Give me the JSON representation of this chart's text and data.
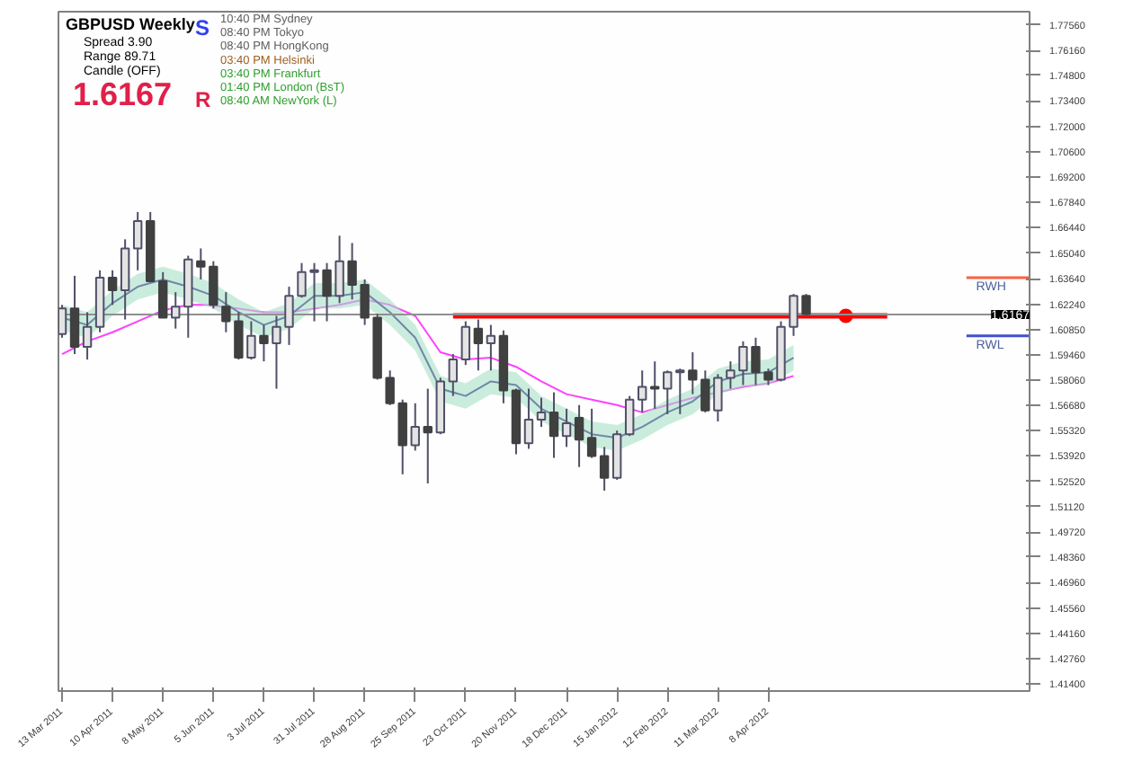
{
  "chart_data": {
    "type": "candlestick",
    "annotations": [
      "GBPUSD  Weekly",
      "Spread  3.90",
      "Range  89.71",
      "Candle  (OFF)",
      "1.6167",
      "S",
      "R",
      "10:40 PM  Sydney",
      "08:40 PM  Tokyo",
      "08:40 PM  HongKong",
      "03:40 PM  Helsinki",
      "03:40 PM  Frankfurt",
      "01:40 PM  London (BsT)",
      "08:40 AM  NewYork (L)"
    ],
    "x": [
      "2011-03-13",
      "2011-03-20",
      "2011-03-27",
      "2011-04-03",
      "2011-04-10",
      "2011-04-17",
      "2011-04-24",
      "2011-05-01",
      "2011-05-08",
      "2011-05-15",
      "2011-05-22",
      "2011-05-29",
      "2011-06-05",
      "2011-06-12",
      "2011-06-19",
      "2011-06-26",
      "2011-07-03",
      "2011-07-10",
      "2011-07-17",
      "2011-07-24",
      "2011-07-31",
      "2011-08-07",
      "2011-08-14",
      "2011-08-21",
      "2011-08-28",
      "2011-09-04",
      "2011-09-11",
      "2011-09-18",
      "2011-09-25",
      "2011-10-02",
      "2011-10-09",
      "2011-10-16",
      "2011-10-23",
      "2011-10-30",
      "2011-11-06",
      "2011-11-13",
      "2011-11-20",
      "2011-11-27",
      "2011-12-04",
      "2011-12-11",
      "2011-12-18",
      "2011-12-25",
      "2012-01-01",
      "2012-01-08",
      "2012-01-15",
      "2012-01-22",
      "2012-01-29",
      "2012-02-05",
      "2012-02-12",
      "2012-02-19",
      "2012-02-26",
      "2012-03-04",
      "2012-03-11",
      "2012-03-18",
      "2012-03-25",
      "2012-04-01",
      "2012-04-08",
      "2012-04-15",
      "2012-04-22",
      "2012-04-29"
    ],
    "ohlc": [
      [
        1.606,
        1.622,
        1.604,
        1.62
      ],
      [
        1.62,
        1.638,
        1.595,
        1.599
      ],
      [
        1.599,
        1.618,
        1.592,
        1.61
      ],
      [
        1.61,
        1.641,
        1.607,
        1.637
      ],
      [
        1.637,
        1.641,
        1.622,
        1.63
      ],
      [
        1.63,
        1.658,
        1.614,
        1.653
      ],
      [
        1.653,
        1.673,
        1.641,
        1.668
      ],
      [
        1.668,
        1.673,
        1.635,
        1.635
      ],
      [
        1.635,
        1.64,
        1.615,
        1.615
      ],
      [
        1.615,
        1.629,
        1.609,
        1.621
      ],
      [
        1.621,
        1.649,
        1.604,
        1.647
      ],
      [
        1.646,
        1.653,
        1.636,
        1.643
      ],
      [
        1.643,
        1.646,
        1.62,
        1.622
      ],
      [
        1.621,
        1.629,
        1.607,
        1.613
      ],
      [
        1.613,
        1.618,
        1.592,
        1.593
      ],
      [
        1.593,
        1.613,
        1.592,
        1.605
      ],
      [
        1.605,
        1.611,
        1.591,
        1.601
      ],
      [
        1.601,
        1.616,
        1.576,
        1.61
      ],
      [
        1.61,
        1.632,
        1.6,
        1.627
      ],
      [
        1.627,
        1.645,
        1.626,
        1.64
      ],
      [
        1.64,
        1.645,
        1.613,
        1.641
      ],
      [
        1.641,
        1.645,
        1.613,
        1.627
      ],
      [
        1.627,
        1.66,
        1.623,
        1.646
      ],
      [
        1.646,
        1.656,
        1.625,
        1.633
      ],
      [
        1.633,
        1.636,
        1.611,
        1.615
      ],
      [
        1.615,
        1.617,
        1.581,
        1.582
      ],
      [
        1.582,
        1.586,
        1.567,
        1.568
      ],
      [
        1.568,
        1.57,
        1.529,
        1.545
      ],
      [
        1.545,
        1.568,
        1.542,
        1.555
      ],
      [
        1.555,
        1.576,
        1.524,
        1.552
      ],
      [
        1.552,
        1.582,
        1.551,
        1.58
      ],
      [
        1.58,
        1.595,
        1.572,
        1.592
      ],
      [
        1.592,
        1.613,
        1.589,
        1.61
      ],
      [
        1.609,
        1.614,
        1.586,
        1.601
      ],
      [
        1.601,
        1.611,
        1.586,
        1.605
      ],
      [
        1.605,
        1.608,
        1.568,
        1.575
      ],
      [
        1.575,
        1.576,
        1.54,
        1.546
      ],
      [
        1.546,
        1.576,
        1.543,
        1.559
      ],
      [
        1.559,
        1.571,
        1.555,
        1.563
      ],
      [
        1.563,
        1.574,
        1.538,
        1.55
      ],
      [
        1.55,
        1.565,
        1.544,
        1.557
      ],
      [
        1.56,
        1.567,
        1.533,
        1.548
      ],
      [
        1.549,
        1.565,
        1.538,
        1.539
      ],
      [
        1.539,
        1.544,
        1.52,
        1.527
      ],
      [
        1.527,
        1.553,
        1.526,
        1.551
      ],
      [
        1.551,
        1.572,
        1.55,
        1.57
      ],
      [
        1.57,
        1.586,
        1.563,
        1.577
      ],
      [
        1.577,
        1.591,
        1.565,
        1.576
      ],
      [
        1.576,
        1.586,
        1.562,
        1.585
      ],
      [
        1.585,
        1.587,
        1.562,
        1.586
      ],
      [
        1.586,
        1.596,
        1.573,
        1.581
      ],
      [
        1.581,
        1.586,
        1.563,
        1.564
      ],
      [
        1.564,
        1.584,
        1.558,
        1.582
      ],
      [
        1.582,
        1.591,
        1.576,
        1.586
      ],
      [
        1.586,
        1.602,
        1.578,
        1.599
      ],
      [
        1.599,
        1.604,
        1.578,
        1.585
      ],
      [
        1.585,
        1.587,
        1.578,
        1.581
      ],
      [
        1.581,
        1.613,
        1.58,
        1.61
      ],
      [
        1.61,
        1.628,
        1.605,
        1.627
      ],
      [
        1.627,
        1.628,
        1.616,
        1.617
      ]
    ],
    "series": [
      {
        "type": "line",
        "color": "#ff40ff",
        "x": [
          "2011-03-13",
          "2011-03-27",
          "2011-04-10",
          "2011-04-24",
          "2011-05-08",
          "2011-05-22",
          "2011-06-01",
          "2011-06-19",
          "2011-07-03",
          "2011-07-17",
          "2011-07-31",
          "2011-08-14",
          "2011-08-28",
          "2011-09-11",
          "2011-09-25",
          "2011-10-09",
          "2011-10-23",
          "2011-11-06",
          "2011-11-20",
          "2011-12-04",
          "2011-12-18",
          "2012-01-01",
          "2012-01-15",
          "2012-01-29",
          "2012-02-12",
          "2012-02-26",
          "2012-03-11",
          "2012-03-25",
          "2012-04-08",
          "2012-04-22"
        ],
        "values": [
          1.595,
          1.602,
          1.607,
          1.613,
          1.619,
          1.622,
          1.622,
          1.62,
          1.618,
          1.618,
          1.62,
          1.622,
          1.625,
          1.622,
          1.616,
          1.596,
          1.592,
          1.593,
          1.588,
          1.58,
          1.573,
          1.57,
          1.567,
          1.563,
          1.567,
          1.571,
          1.574,
          1.577,
          1.579,
          1.583
        ]
      },
      {
        "type": "line",
        "color": "#7088a8",
        "x": [
          "2011-03-13",
          "2011-03-27",
          "2011-04-10",
          "2011-04-24",
          "2011-05-08",
          "2011-05-22",
          "2011-06-05",
          "2011-06-19",
          "2011-07-03",
          "2011-07-17",
          "2011-07-31",
          "2011-08-14",
          "2011-08-28",
          "2011-09-11",
          "2011-09-25",
          "2011-10-09",
          "2011-10-23",
          "2011-11-06",
          "2011-11-20",
          "2011-12-04",
          "2011-12-18",
          "2012-01-01",
          "2012-01-15",
          "2012-01-29",
          "2012-02-12",
          "2012-02-26",
          "2012-03-11",
          "2012-03-25",
          "2012-04-08",
          "2012-04-22"
        ],
        "values": [
          1.615,
          1.611,
          1.623,
          1.632,
          1.636,
          1.632,
          1.627,
          1.618,
          1.611,
          1.616,
          1.627,
          1.627,
          1.629,
          1.618,
          1.604,
          1.576,
          1.572,
          1.58,
          1.578,
          1.565,
          1.558,
          1.551,
          1.549,
          1.555,
          1.563,
          1.569,
          1.58,
          1.584,
          1.585,
          1.593
        ],
        "lower": [
          1.608,
          1.604,
          1.616,
          1.625,
          1.629,
          1.625,
          1.62,
          1.611,
          1.604,
          1.609,
          1.62,
          1.62,
          1.622,
          1.611,
          1.597,
          1.569,
          1.565,
          1.573,
          1.571,
          1.558,
          1.551,
          1.544,
          1.542,
          1.548,
          1.556,
          1.562,
          1.573,
          1.577,
          1.578,
          1.586
        ],
        "upper": [
          1.622,
          1.618,
          1.63,
          1.639,
          1.643,
          1.639,
          1.634,
          1.625,
          1.618,
          1.623,
          1.634,
          1.634,
          1.636,
          1.625,
          1.611,
          1.583,
          1.579,
          1.587,
          1.585,
          1.572,
          1.565,
          1.558,
          1.556,
          1.562,
          1.57,
          1.576,
          1.587,
          1.591,
          1.592,
          1.6
        ]
      },
      {
        "type": "line",
        "color": "#ff0000",
        "x": [
          "2011-10-16",
          "2012-06-13"
        ],
        "values": [
          1.616,
          1.616
        ]
      },
      {
        "type": "scatter",
        "color": "#ff0000",
        "marker": "circle",
        "x": [
          "2012-05-21"
        ],
        "values": [
          1.616
        ]
      }
    ],
    "ref_lines": [
      {
        "axis": "y",
        "value": 1.6167,
        "label": "1.6167",
        "color": "#909090"
      },
      {
        "axis": "y",
        "value": 1.637,
        "label": "RWH",
        "color": "#ff6040"
      },
      {
        "axis": "y",
        "value": 1.605,
        "label": "RWL",
        "color": "#4050d0"
      }
    ],
    "xlim": [
      "2011-03-11",
      "2012-08-31"
    ],
    "xticks": [
      {
        "value": "2011-03-13",
        "label": "13 Mar 2011"
      },
      {
        "value": "2011-04-10",
        "label": "10 Apr 2011"
      },
      {
        "value": "2011-05-08",
        "label": "8 May 2011"
      },
      {
        "value": "2011-06-05",
        "label": "5 Jun 2011"
      },
      {
        "value": "2011-07-03",
        "label": "3 Jul 2011"
      },
      {
        "value": "2011-07-31",
        "label": "31 Jul 2011"
      },
      {
        "value": "2011-08-28",
        "label": "28 Aug 2011"
      },
      {
        "value": "2011-09-25",
        "label": "25 Sep 2011"
      },
      {
        "value": "2011-10-23",
        "label": "23 Oct 2011"
      },
      {
        "value": "2011-11-20",
        "label": "20 Nov 2011"
      },
      {
        "value": "2011-12-18",
        "label": "18 Dec 2011"
      },
      {
        "value": "2012-01-15",
        "label": "15 Jan 2012"
      },
      {
        "value": "2012-02-12",
        "label": "12 Feb 2012"
      },
      {
        "value": "2012-03-11",
        "label": "11 Mar 2012"
      },
      {
        "value": "2012-04-08",
        "label": "8 Apr 2012"
      }
    ],
    "ylim": [
      1.41,
      1.783
    ],
    "yticks": [
      {
        "value": 1.7756,
        "label": "1.77560"
      },
      {
        "value": 1.7616,
        "label": "1.76160"
      },
      {
        "value": 1.748,
        "label": "1.74800"
      },
      {
        "value": 1.734,
        "label": "1.73400"
      },
      {
        "value": 1.72,
        "label": "1.72000"
      },
      {
        "value": 1.706,
        "label": "1.70600"
      },
      {
        "value": 1.692,
        "label": "1.69200"
      },
      {
        "value": 1.6784,
        "label": "1.67840"
      },
      {
        "value": 1.6644,
        "label": "1.66440"
      },
      {
        "value": 1.6504,
        "label": "1.65040"
      },
      {
        "value": 1.6364,
        "label": "1.63640"
      },
      {
        "value": 1.6224,
        "label": "1.62240"
      },
      {
        "value": 1.6085,
        "label": "1.60850"
      },
      {
        "value": 1.5946,
        "label": "1.59460"
      },
      {
        "value": 1.5806,
        "label": "1.58060"
      },
      {
        "value": 1.5668,
        "label": "1.56680"
      },
      {
        "value": 1.5532,
        "label": "1.55320"
      },
      {
        "value": 1.5392,
        "label": "1.53920"
      },
      {
        "value": 1.5252,
        "label": "1.52520"
      },
      {
        "value": 1.5112,
        "label": "1.51120"
      },
      {
        "value": 1.4972,
        "label": "1.49720"
      },
      {
        "value": 1.4836,
        "label": "1.48360"
      },
      {
        "value": 1.4696,
        "label": "1.46960"
      },
      {
        "value": 1.4556,
        "label": "1.45560"
      },
      {
        "value": 1.4416,
        "label": "1.44160"
      },
      {
        "value": 1.4276,
        "label": "1.42760"
      },
      {
        "value": 1.414,
        "label": "1.41400"
      }
    ]
  }
}
